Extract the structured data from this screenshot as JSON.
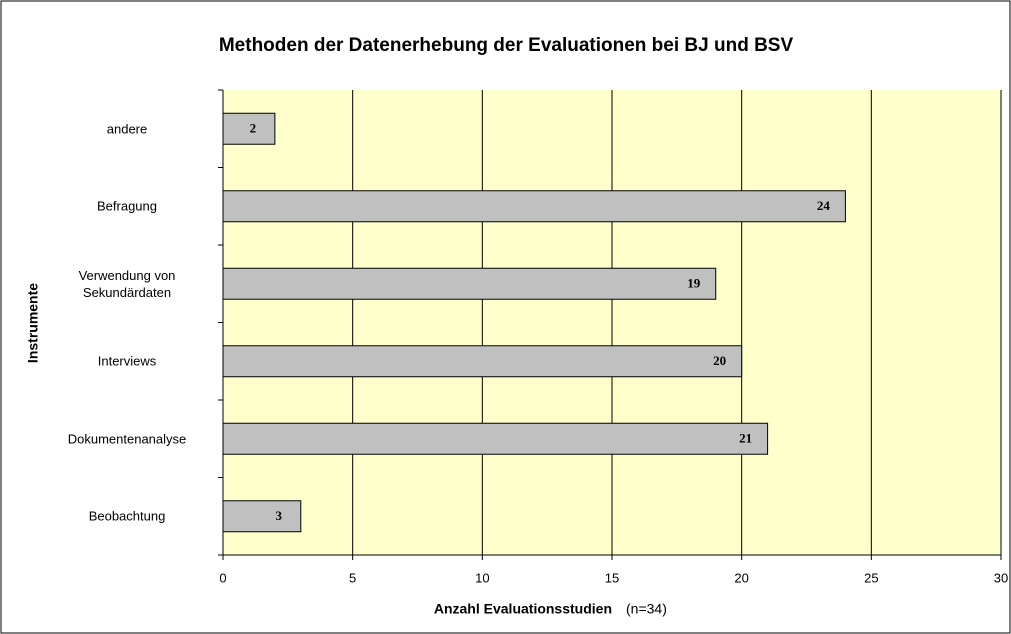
{
  "chart_data": {
    "type": "hbar",
    "title": "Methoden der Datenerhebung der Evaluationen bei BJ und BSV",
    "x_label": "Anzahl Evaluationsstudien",
    "x_label_note": "(n=34)",
    "y_label": "Instrumente",
    "categories": [
      "andere",
      "Befragung",
      "Verwendung von Sekundärdaten",
      "Interviews",
      "Dokumentenanalyse",
      "Beobachtung"
    ],
    "values": [
      2,
      24,
      19,
      20,
      21,
      3
    ],
    "color": "#c0c0c0",
    "plot_background": "#ffffcc",
    "xlim": [
      0,
      30
    ],
    "xticks": [
      0,
      5,
      10,
      15,
      20,
      25,
      30
    ],
    "grid": true
  }
}
